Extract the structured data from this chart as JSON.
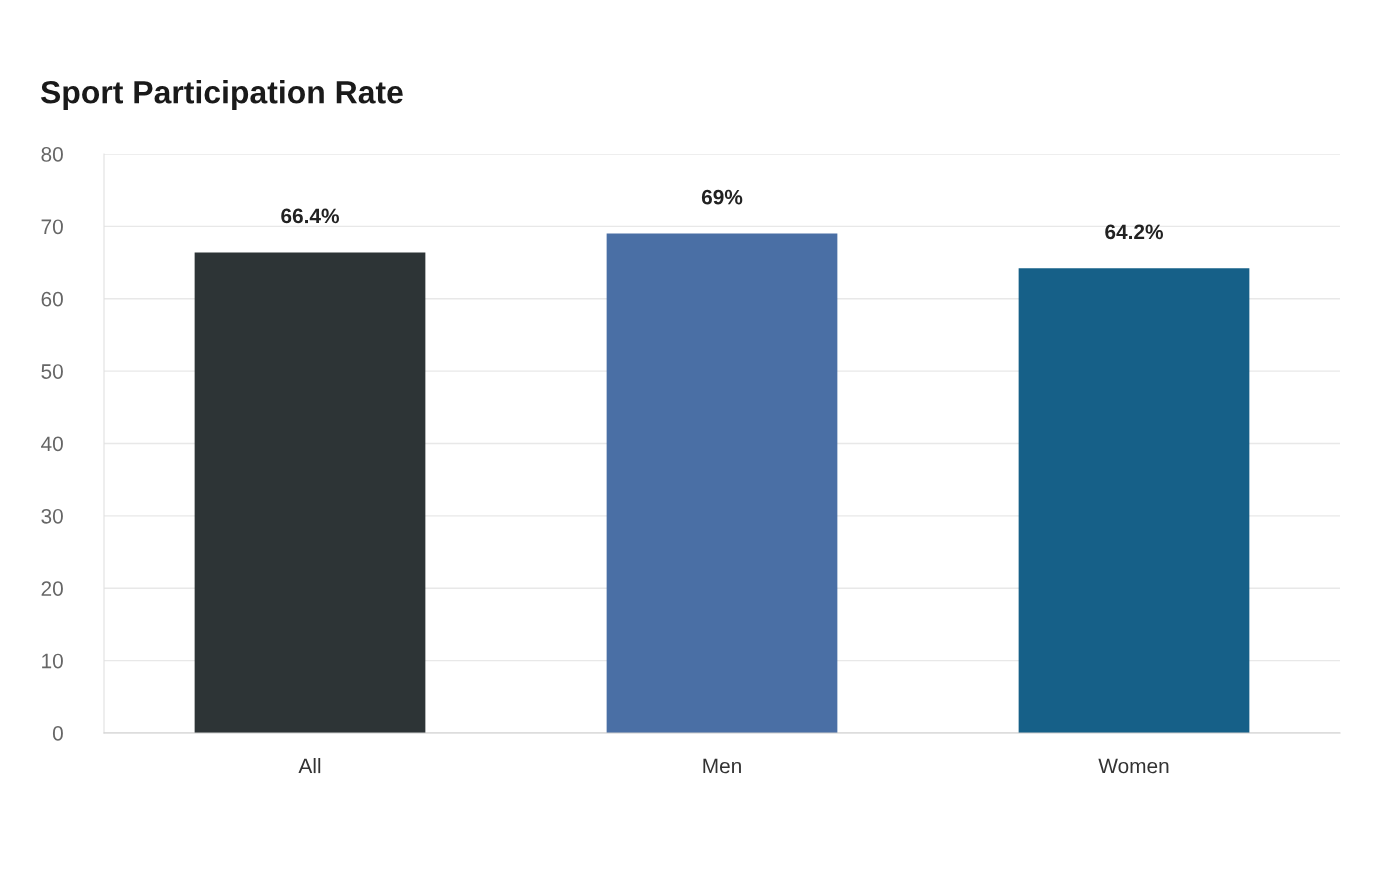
{
  "chart_data": {
    "type": "bar",
    "title": "Sport Participation Rate",
    "categories": [
      "All",
      "Men",
      "Women"
    ],
    "values": [
      66.4,
      69,
      64.2
    ],
    "colors": [
      "#2d3436",
      "#4a6fa5",
      "#166088"
    ],
    "value_labels": [
      "66.4%",
      "69%",
      "64.2%"
    ],
    "ylim": [
      0,
      80
    ],
    "yticks": [
      0,
      10,
      20,
      30,
      40,
      50,
      60,
      70,
      80
    ],
    "grid": "y",
    "legend": false
  }
}
